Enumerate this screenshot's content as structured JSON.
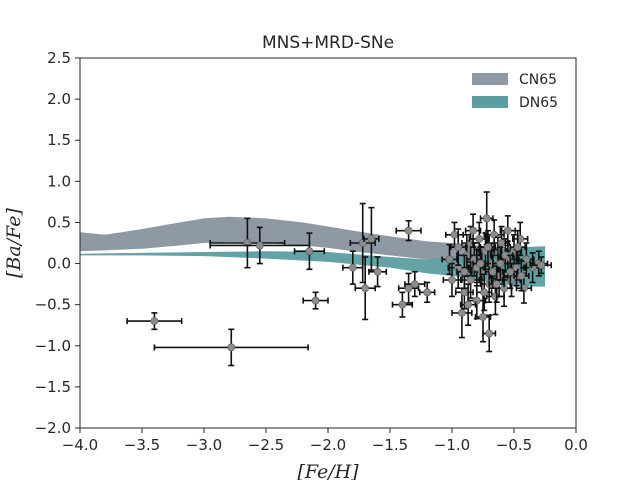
{
  "chart_data": {
    "type": "scatter",
    "title": "MNS+MRD-SNe",
    "xlabel": "[Fe/H]",
    "ylabel": "[Ba/Fe]",
    "xlim": [
      -4.0,
      0.0
    ],
    "ylim": [
      -2.0,
      2.5
    ],
    "xticks": [
      "−4.0",
      "−3.5",
      "−3.0",
      "−2.5",
      "−2.0",
      "−1.5",
      "−1.0",
      "−0.5",
      "0.0"
    ],
    "yticks": [
      "2.5",
      "2.0",
      "1.5",
      "1.0",
      "0.5",
      "0.0",
      "−0.5",
      "−1.0",
      "−1.5",
      "−2.0"
    ],
    "xtick_values": [
      -4.0,
      -3.5,
      -3.0,
      -2.5,
      -2.0,
      -1.5,
      -1.0,
      -0.5,
      0.0
    ],
    "ytick_values": [
      2.5,
      2.0,
      1.5,
      1.0,
      0.5,
      0.0,
      -0.5,
      -1.0,
      -1.5,
      -2.0
    ],
    "legend": [
      {
        "name": "CN65",
        "color": "#8e99a4"
      },
      {
        "name": "DN65",
        "color": "#5b9ea2"
      }
    ],
    "bands": [
      {
        "name": "CN65",
        "color": "#8e99a4",
        "upper": [
          [
            -4.0,
            0.38
          ],
          [
            -3.8,
            0.35
          ],
          [
            -3.5,
            0.42
          ],
          [
            -3.2,
            0.5
          ],
          [
            -3.0,
            0.55
          ],
          [
            -2.8,
            0.57
          ],
          [
            -2.5,
            0.55
          ],
          [
            -2.2,
            0.5
          ],
          [
            -2.0,
            0.45
          ],
          [
            -1.8,
            0.4
          ],
          [
            -1.5,
            0.33
          ],
          [
            -1.2,
            0.27
          ],
          [
            -1.0,
            0.25
          ],
          [
            -0.8,
            0.22
          ],
          [
            -0.6,
            0.2
          ],
          [
            -0.4,
            0.18
          ],
          [
            -0.25,
            0.14
          ]
        ],
        "lower": [
          [
            -4.0,
            0.15
          ],
          [
            -3.8,
            0.16
          ],
          [
            -3.5,
            0.18
          ],
          [
            -3.2,
            0.22
          ],
          [
            -3.0,
            0.25
          ],
          [
            -2.8,
            0.26
          ],
          [
            -2.5,
            0.25
          ],
          [
            -2.2,
            0.22
          ],
          [
            -2.0,
            0.19
          ],
          [
            -1.8,
            0.15
          ],
          [
            -1.5,
            0.1
          ],
          [
            -1.2,
            0.05
          ],
          [
            -1.0,
            0.02
          ],
          [
            -0.8,
            -0.02
          ],
          [
            -0.6,
            -0.05
          ],
          [
            -0.4,
            -0.1
          ],
          [
            -0.25,
            -0.15
          ]
        ]
      },
      {
        "name": "DN65",
        "color": "#5b9ea2",
        "upper": [
          [
            -4.0,
            0.12
          ],
          [
            -3.5,
            0.13
          ],
          [
            -3.0,
            0.14
          ],
          [
            -2.5,
            0.15
          ],
          [
            -2.0,
            0.14
          ],
          [
            -1.5,
            0.08
          ],
          [
            -1.2,
            0.05
          ],
          [
            -1.0,
            0.08
          ],
          [
            -0.8,
            0.12
          ],
          [
            -0.6,
            0.17
          ],
          [
            -0.45,
            0.2
          ],
          [
            -0.25,
            0.21
          ]
        ],
        "lower": [
          [
            -4.0,
            0.1
          ],
          [
            -3.5,
            0.1
          ],
          [
            -3.0,
            0.09
          ],
          [
            -2.5,
            0.06
          ],
          [
            -2.0,
            0.02
          ],
          [
            -1.5,
            -0.05
          ],
          [
            -1.2,
            -0.12
          ],
          [
            -1.0,
            -0.15
          ],
          [
            -0.8,
            -0.2
          ],
          [
            -0.6,
            -0.25
          ],
          [
            -0.45,
            -0.28
          ],
          [
            -0.25,
            -0.28
          ]
        ]
      }
    ],
    "points": [
      {
        "x": -3.4,
        "y": -0.7,
        "xerr": 0.22,
        "yerr": 0.1
      },
      {
        "x": -2.78,
        "y": -1.02,
        "xerr": 0.62,
        "yerr": 0.22
      },
      {
        "x": -2.65,
        "y": 0.25,
        "xerr": 0.3,
        "yerr": 0.3
      },
      {
        "x": -2.55,
        "y": 0.22,
        "xerr": 0.4,
        "yerr": 0.22
      },
      {
        "x": -2.15,
        "y": 0.15,
        "xerr": 0.12,
        "yerr": 0.22
      },
      {
        "x": -2.1,
        "y": -0.45,
        "xerr": 0.1,
        "yerr": 0.1
      },
      {
        "x": -1.8,
        "y": -0.05,
        "xerr": 0.08,
        "yerr": 0.2
      },
      {
        "x": -1.72,
        "y": 0.25,
        "xerr": 0.1,
        "yerr": 0.48
      },
      {
        "x": -1.7,
        "y": -0.3,
        "xerr": 0.08,
        "yerr": 0.38
      },
      {
        "x": -1.65,
        "y": 0.3,
        "xerr": 0.06,
        "yerr": 0.38
      },
      {
        "x": -1.6,
        "y": -0.1,
        "xerr": 0.07,
        "yerr": 0.18
      },
      {
        "x": -1.35,
        "y": 0.4,
        "xerr": 0.1,
        "yerr": 0.12
      },
      {
        "x": -1.35,
        "y": -0.3,
        "xerr": 0.08,
        "yerr": 0.18
      },
      {
        "x": -1.4,
        "y": -0.5,
        "xerr": 0.08,
        "yerr": 0.15
      },
      {
        "x": -1.3,
        "y": -0.25,
        "xerr": 0.08,
        "yerr": 0.15
      },
      {
        "x": -1.2,
        "y": -0.35,
        "xerr": 0.06,
        "yerr": 0.12
      },
      {
        "x": -0.98,
        "y": 0.35,
        "xerr": 0.07,
        "yerr": 0.15
      },
      {
        "x": -0.95,
        "y": -0.05,
        "xerr": 0.08,
        "yerr": 0.25
      },
      {
        "x": -0.92,
        "y": -0.6,
        "xerr": 0.08,
        "yerr": 0.3
      },
      {
        "x": -0.9,
        "y": -0.35,
        "xerr": 0.07,
        "yerr": 0.2
      },
      {
        "x": -0.88,
        "y": 0.1,
        "xerr": 0.08,
        "yerr": 0.25
      },
      {
        "x": -0.85,
        "y": 0.25,
        "xerr": 0.07,
        "yerr": 0.2
      },
      {
        "x": -0.85,
        "y": -0.2,
        "xerr": 0.07,
        "yerr": 0.22
      },
      {
        "x": -0.82,
        "y": 0.05,
        "xerr": 0.06,
        "yerr": 0.2
      },
      {
        "x": -0.8,
        "y": -0.45,
        "xerr": 0.07,
        "yerr": 0.22
      },
      {
        "x": -0.78,
        "y": 0.3,
        "xerr": 0.08,
        "yerr": 0.2
      },
      {
        "x": -0.76,
        "y": -0.1,
        "xerr": 0.06,
        "yerr": 0.25
      },
      {
        "x": -0.75,
        "y": -0.65,
        "xerr": 0.06,
        "yerr": 0.3
      },
      {
        "x": -0.73,
        "y": 0.15,
        "xerr": 0.07,
        "yerr": 0.22
      },
      {
        "x": -0.72,
        "y": 0.55,
        "xerr": 0.05,
        "yerr": 0.32
      },
      {
        "x": -0.7,
        "y": -0.25,
        "xerr": 0.07,
        "yerr": 0.22
      },
      {
        "x": -0.7,
        "y": -0.85,
        "xerr": 0.05,
        "yerr": 0.22
      },
      {
        "x": -0.68,
        "y": 0.0,
        "xerr": 0.06,
        "yerr": 0.25
      },
      {
        "x": -0.66,
        "y": 0.35,
        "xerr": 0.08,
        "yerr": 0.18
      },
      {
        "x": -0.65,
        "y": -0.4,
        "xerr": 0.07,
        "yerr": 0.22
      },
      {
        "x": -0.63,
        "y": 0.1,
        "xerr": 0.06,
        "yerr": 0.22
      },
      {
        "x": -0.62,
        "y": -0.15,
        "xerr": 0.07,
        "yerr": 0.25
      },
      {
        "x": -0.6,
        "y": 0.25,
        "xerr": 0.06,
        "yerr": 0.2
      },
      {
        "x": -0.58,
        "y": -0.3,
        "xerr": 0.06,
        "yerr": 0.22
      },
      {
        "x": -0.55,
        "y": 0.05,
        "xerr": 0.07,
        "yerr": 0.22
      },
      {
        "x": -0.55,
        "y": 0.4,
        "xerr": 0.06,
        "yerr": 0.18
      },
      {
        "x": -0.52,
        "y": -0.2,
        "xerr": 0.07,
        "yerr": 0.2
      },
      {
        "x": -0.5,
        "y": 0.15,
        "xerr": 0.06,
        "yerr": 0.2
      },
      {
        "x": -0.48,
        "y": -0.05,
        "xerr": 0.07,
        "yerr": 0.22
      },
      {
        "x": -0.45,
        "y": 0.3,
        "xerr": 0.06,
        "yerr": 0.2
      },
      {
        "x": -0.42,
        "y": -0.3,
        "xerr": 0.06,
        "yerr": 0.18
      },
      {
        "x": -0.4,
        "y": 0.05,
        "xerr": 0.06,
        "yerr": 0.2
      },
      {
        "x": -0.35,
        "y": -0.05,
        "xerr": 0.07,
        "yerr": 0.18
      },
      {
        "x": -0.3,
        "y": 0.0,
        "xerr": 0.07,
        "yerr": 0.15
      },
      {
        "x": -0.28,
        "y": -0.02,
        "xerr": 0.08,
        "yerr": 0.1
      },
      {
        "x": -1.0,
        "y": -0.2,
        "xerr": 0.07,
        "yerr": 0.2
      },
      {
        "x": -1.02,
        "y": 0.05,
        "xerr": 0.06,
        "yerr": 0.18
      },
      {
        "x": -0.95,
        "y": 0.2,
        "xerr": 0.06,
        "yerr": 0.22
      },
      {
        "x": -0.9,
        "y": -0.1,
        "xerr": 0.06,
        "yerr": 0.2
      },
      {
        "x": -0.87,
        "y": -0.5,
        "xerr": 0.06,
        "yerr": 0.25
      },
      {
        "x": -0.83,
        "y": 0.4,
        "xerr": 0.06,
        "yerr": 0.2
      },
      {
        "x": -0.8,
        "y": -0.05,
        "xerr": 0.06,
        "yerr": 0.22
      },
      {
        "x": -0.77,
        "y": 0.0,
        "xerr": 0.06,
        "yerr": 0.2
      },
      {
        "x": -0.74,
        "y": -0.35,
        "xerr": 0.06,
        "yerr": 0.22
      },
      {
        "x": -0.71,
        "y": 0.2,
        "xerr": 0.06,
        "yerr": 0.2
      },
      {
        "x": -0.67,
        "y": -0.1,
        "xerr": 0.06,
        "yerr": 0.2
      },
      {
        "x": -0.64,
        "y": -0.25,
        "xerr": 0.06,
        "yerr": 0.22
      },
      {
        "x": -0.61,
        "y": 0.0,
        "xerr": 0.06,
        "yerr": 0.2
      },
      {
        "x": -0.57,
        "y": 0.1,
        "xerr": 0.06,
        "yerr": 0.2
      },
      {
        "x": -0.53,
        "y": -0.1,
        "xerr": 0.06,
        "yerr": 0.2
      },
      {
        "x": -0.47,
        "y": 0.2,
        "xerr": 0.06,
        "yerr": 0.2
      },
      {
        "x": -0.44,
        "y": -0.15,
        "xerr": 0.06,
        "yerr": 0.18
      }
    ]
  }
}
